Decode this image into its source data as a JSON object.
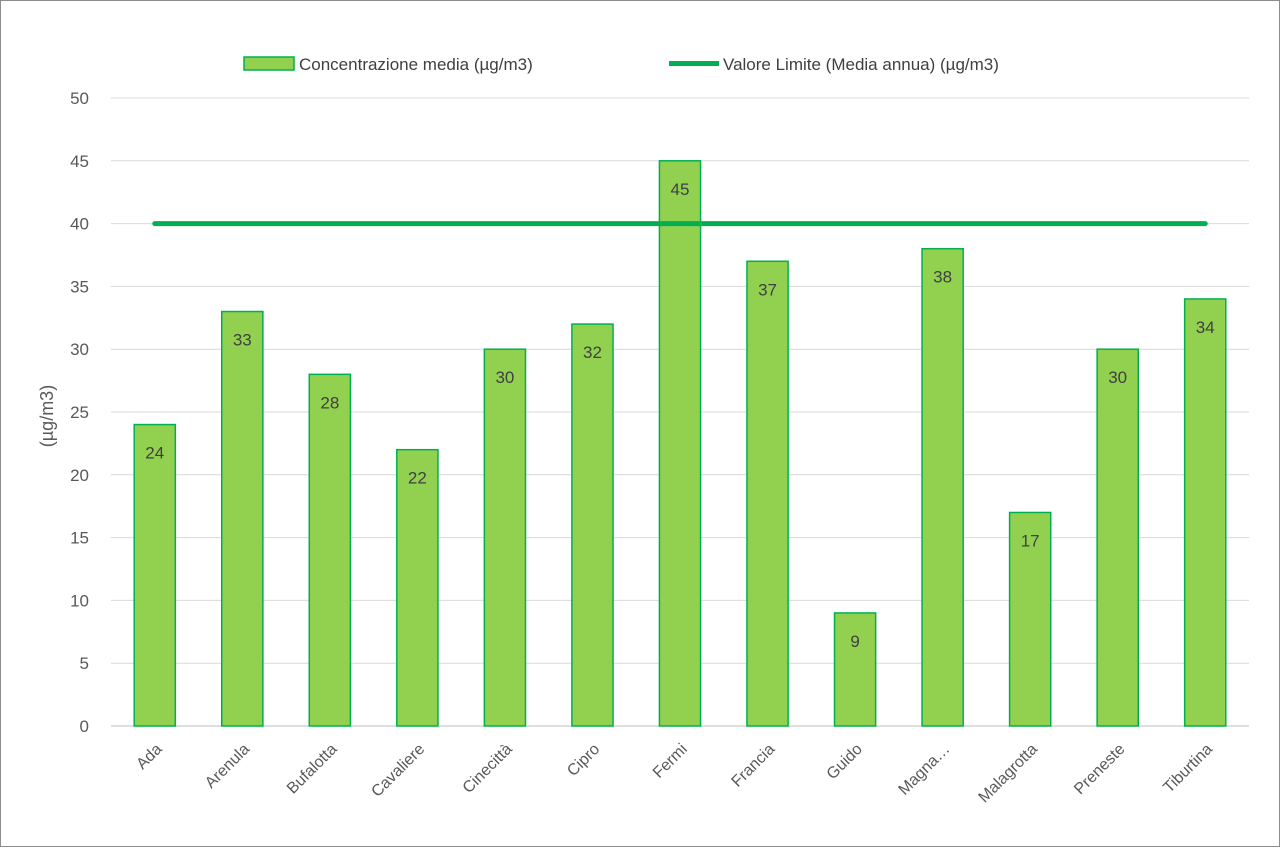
{
  "chart_data": {
    "type": "bar",
    "title": "",
    "xlabel": "",
    "ylabel": "(µg/m3)",
    "ylim": [
      0,
      50
    ],
    "yticks": [
      0,
      5,
      10,
      15,
      20,
      25,
      30,
      35,
      40,
      45,
      50
    ],
    "grid": true,
    "legend_position": "top",
    "categories": [
      "Ada",
      "Arenula",
      "Bufalotta",
      "Cavaliere",
      "Cinecittà",
      "Cipro",
      "Fermi",
      "Francia",
      "Guido",
      "Magna…",
      "Malagrotta",
      "Preneste",
      "Tiburtina"
    ],
    "series": [
      {
        "name": "Concentrazione media (µg/m3)",
        "type": "bar",
        "values": [
          24,
          33,
          28,
          22,
          30,
          32,
          45,
          37,
          9,
          38,
          17,
          30,
          34
        ],
        "fill": "#92d050",
        "stroke": "#00b050",
        "data_labels": true
      },
      {
        "name": "Valore Limite (Media annua) (µg/m3)",
        "type": "line",
        "values": [
          40,
          40,
          40,
          40,
          40,
          40,
          40,
          40,
          40,
          40,
          40,
          40,
          40
        ],
        "color": "#00b050"
      }
    ]
  }
}
